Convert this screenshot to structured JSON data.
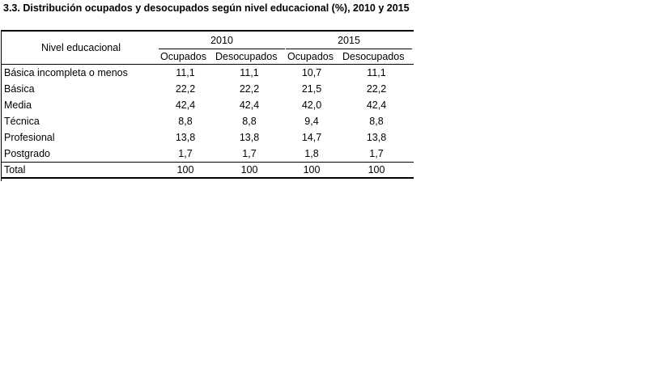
{
  "title": "3.3. Distribución ocupados y desocupados según nivel educacional (%), 2010 y 2015",
  "header": {
    "row_label": "Nivel educacional",
    "years": [
      "2010",
      "2015"
    ],
    "subcols": [
      "Ocupados",
      "Desocupados",
      "Ocupados",
      "Desocupados"
    ]
  },
  "rows": [
    {
      "label": "Básica incompleta o menos",
      "values": [
        "11,1",
        "11,1",
        "10,7",
        "11,1"
      ]
    },
    {
      "label": "Básica",
      "values": [
        "22,2",
        "22,2",
        "21,5",
        "22,2"
      ]
    },
    {
      "label": "Media",
      "values": [
        "42,4",
        "42,4",
        "42,0",
        "42,4"
      ]
    },
    {
      "label": "Técnica",
      "values": [
        "8,8",
        "8,8",
        "9,4",
        "8,8"
      ]
    },
    {
      "label": "Profesional",
      "values": [
        "13,8",
        "13,8",
        "14,7",
        "13,8"
      ]
    },
    {
      "label": "Postgrado",
      "values": [
        "1,7",
        "1,7",
        "1,8",
        "1,7"
      ]
    }
  ],
  "total": {
    "label": "Total",
    "values": [
      "100",
      "100",
      "100",
      "100"
    ]
  }
}
